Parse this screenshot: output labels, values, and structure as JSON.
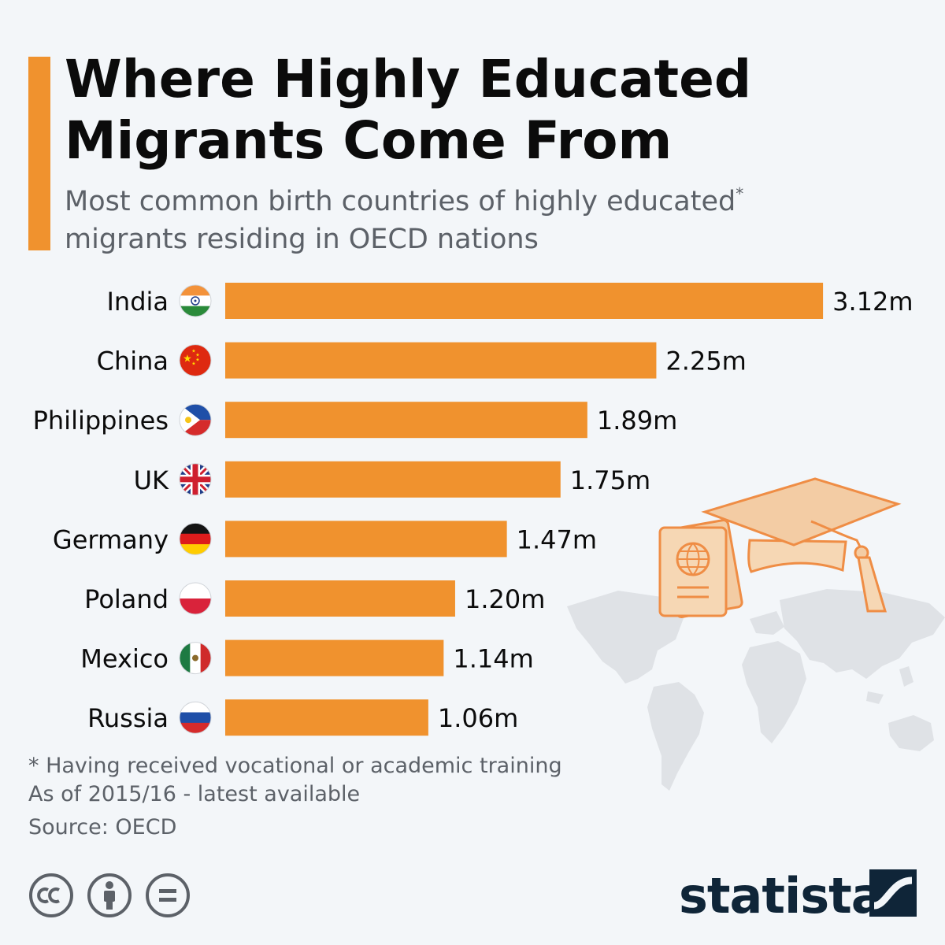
{
  "header": {
    "title_line1": "Where Highly Educated",
    "title_line2": "Migrants Come From",
    "subtitle_line1": "Most common birth countries of highly educated",
    "subtitle_asterisk": "*",
    "subtitle_line2": "migrants residing in OECD nations"
  },
  "colors": {
    "accent": "#f0922e",
    "bar": "#f0922e",
    "text": "#0b0b0b",
    "muted": "#5c6168",
    "background": "#f3f6f9",
    "logo": "#0f2538"
  },
  "chart_data": {
    "type": "bar",
    "orientation": "horizontal",
    "categories": [
      "India",
      "China",
      "Philippines",
      "UK",
      "Germany",
      "Poland",
      "Mexico",
      "Russia"
    ],
    "values": [
      3.12,
      2.25,
      1.89,
      1.75,
      1.47,
      1.2,
      1.14,
      1.06
    ],
    "value_labels": [
      "3.12m",
      "2.25m",
      "1.89m",
      "1.75m",
      "1.47m",
      "1.20m",
      "1.14m",
      "1.06m"
    ],
    "flags": [
      "india-flag-icon",
      "china-flag-icon",
      "philippines-flag-icon",
      "uk-flag-icon",
      "germany-flag-icon",
      "poland-flag-icon",
      "mexico-flag-icon",
      "russia-flag-icon"
    ],
    "unit": "m",
    "grid": false,
    "legend": "none"
  },
  "notes": {
    "footnote": "* Having received vocational or academic training",
    "as_of": "As of 2015/16 - latest available",
    "source": "Source: OECD"
  },
  "license_icons": [
    "cc-icon",
    "by-icon",
    "nd-icon"
  ],
  "branding": {
    "logo_text": "statista"
  }
}
